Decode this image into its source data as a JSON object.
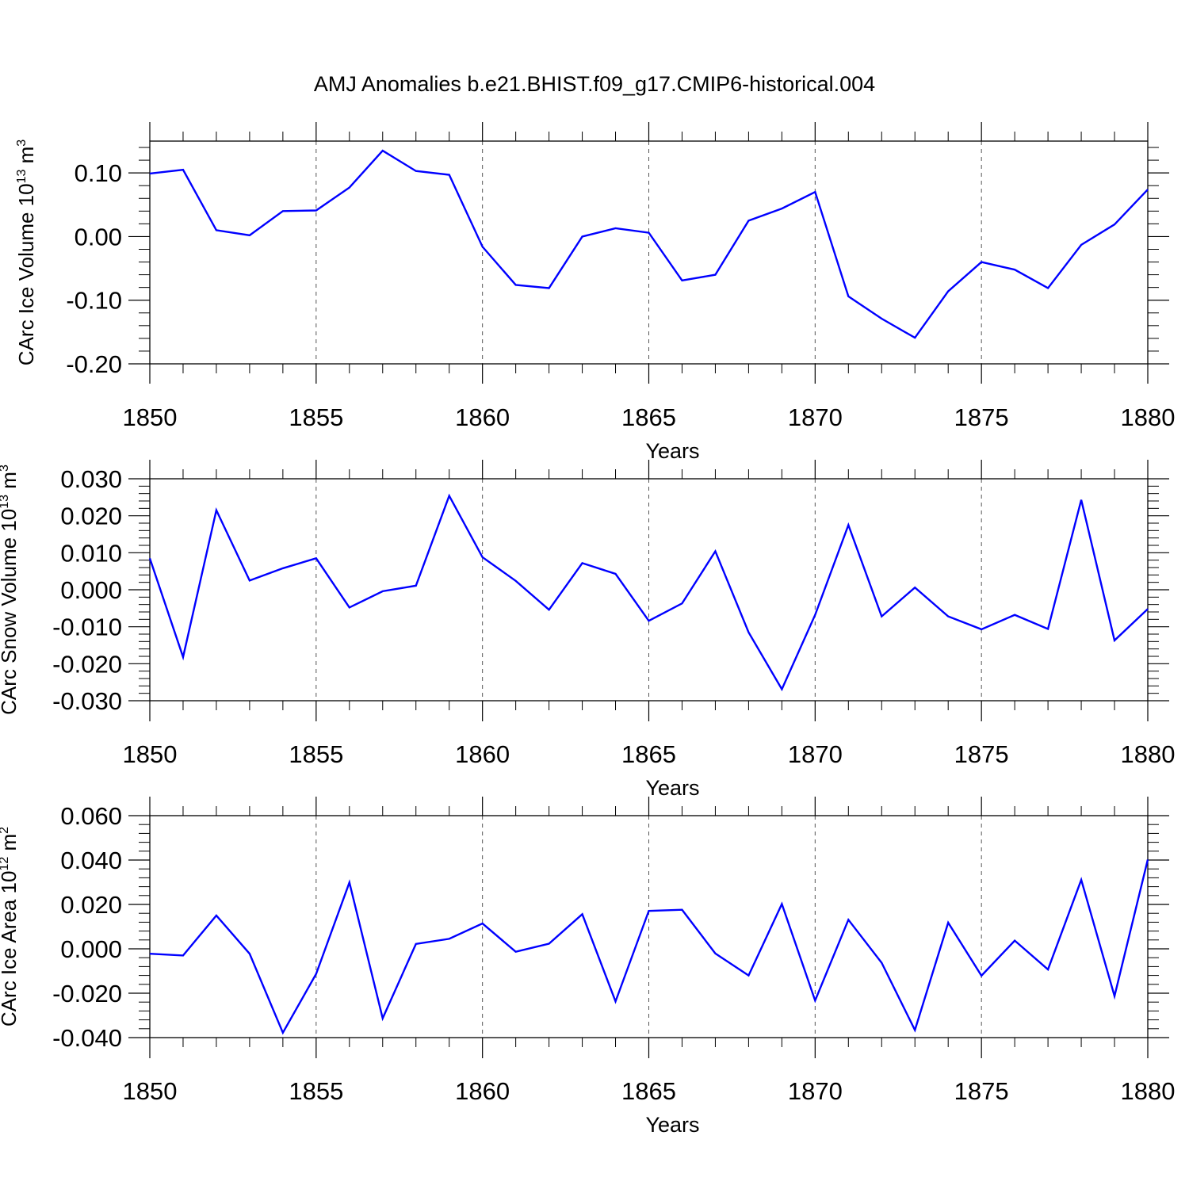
{
  "figure": {
    "title": "AMJ Anomalies b.e21.BHIST.f09_g17.CMIP6-historical.004",
    "line_color": "#0000ff"
  },
  "chart_data": [
    {
      "type": "line",
      "xlabel": "Years",
      "ylabel": {
        "prefix": "CArc Ice Volume 10",
        "exponent": "13",
        "unit": "m",
        "unit_exponent": "3"
      },
      "xlim": [
        1850,
        1880
      ],
      "ylim": [
        -0.2,
        0.15
      ],
      "xticks": [
        1850,
        1855,
        1860,
        1865,
        1870,
        1875,
        1880
      ],
      "xtick_labels": [
        "1850",
        "1855",
        "1860",
        "1865",
        "1870",
        "1875",
        "1880"
      ],
      "yticks": [
        -0.2,
        -0.1,
        0.0,
        0.1
      ],
      "ytick_labels": [
        "-0.20",
        "-0.10",
        "0.00",
        "0.10"
      ],
      "grid": "dashed vertical at major x ticks",
      "series": [
        {
          "x": [
            1850,
            1851,
            1852,
            1853,
            1854,
            1855,
            1856,
            1857,
            1858,
            1859,
            1860,
            1861,
            1862,
            1863,
            1864,
            1865,
            1866,
            1867,
            1868,
            1869,
            1870,
            1871,
            1872,
            1873,
            1874,
            1875,
            1876,
            1877,
            1878,
            1879,
            1880
          ],
          "values": [
            0.099,
            0.105,
            0.01,
            0.002,
            0.04,
            0.041,
            0.077,
            0.135,
            0.103,
            0.097,
            -0.016,
            -0.076,
            -0.081,
            0.0,
            0.013,
            0.006,
            -0.069,
            -0.06,
            0.025,
            0.044,
            0.07,
            -0.094,
            -0.129,
            -0.159,
            -0.086,
            -0.04,
            -0.052,
            -0.081,
            -0.013,
            0.019,
            0.074
          ]
        }
      ]
    },
    {
      "type": "line",
      "xlabel": "Years",
      "ylabel": {
        "prefix": "CArc Snow Volume 10",
        "exponent": "13",
        "unit": "m",
        "unit_exponent": "3"
      },
      "xlim": [
        1850,
        1880
      ],
      "ylim": [
        -0.03,
        0.03
      ],
      "xticks": [
        1850,
        1855,
        1860,
        1865,
        1870,
        1875,
        1880
      ],
      "xtick_labels": [
        "1850",
        "1855",
        "1860",
        "1865",
        "1870",
        "1875",
        "1880"
      ],
      "yticks": [
        -0.03,
        -0.02,
        -0.01,
        0.0,
        0.01,
        0.02,
        0.03
      ],
      "ytick_labels": [
        "-0.030",
        "-0.020",
        "-0.010",
        "0.000",
        "0.010",
        "0.020",
        "0.030"
      ],
      "grid": "dashed vertical at major x ticks",
      "series": [
        {
          "x": [
            1850,
            1851,
            1852,
            1853,
            1854,
            1855,
            1856,
            1857,
            1858,
            1859,
            1860,
            1861,
            1862,
            1863,
            1864,
            1865,
            1866,
            1867,
            1868,
            1869,
            1870,
            1871,
            1872,
            1873,
            1874,
            1875,
            1876,
            1877,
            1878,
            1879,
            1880
          ],
          "values": [
            0.0085,
            -0.0182,
            0.0215,
            0.0025,
            0.0058,
            0.0085,
            -0.0048,
            -0.0004,
            0.0011,
            0.0254,
            0.0088,
            0.0024,
            -0.0054,
            0.0072,
            0.0043,
            -0.0084,
            -0.0037,
            0.0104,
            -0.0115,
            -0.0269,
            -0.0068,
            0.0175,
            -0.0072,
            0.0006,
            -0.0072,
            -0.0107,
            -0.0068,
            -0.0106,
            0.0243,
            -0.0137,
            -0.0052
          ]
        }
      ]
    },
    {
      "type": "line",
      "xlabel": "Years",
      "ylabel": {
        "prefix": "CArc Ice Area 10",
        "exponent": "12",
        "unit": "m",
        "unit_exponent": "2"
      },
      "xlim": [
        1850,
        1880
      ],
      "ylim": [
        -0.04,
        0.06
      ],
      "xticks": [
        1850,
        1855,
        1860,
        1865,
        1870,
        1875,
        1880
      ],
      "xtick_labels": [
        "1850",
        "1855",
        "1860",
        "1865",
        "1870",
        "1875",
        "1880"
      ],
      "yticks": [
        -0.04,
        -0.02,
        0.0,
        0.02,
        0.04,
        0.06
      ],
      "ytick_labels": [
        "-0.040",
        "-0.020",
        "0.000",
        "0.020",
        "0.040",
        "0.060"
      ],
      "grid": "dashed vertical at major x ticks",
      "series": [
        {
          "x": [
            1850,
            1851,
            1852,
            1853,
            1854,
            1855,
            1856,
            1857,
            1858,
            1859,
            1860,
            1861,
            1862,
            1863,
            1864,
            1865,
            1866,
            1867,
            1868,
            1869,
            1870,
            1871,
            1872,
            1873,
            1874,
            1875,
            1876,
            1877,
            1878,
            1879,
            1880
          ],
          "values": [
            -0.0022,
            -0.003,
            0.015,
            -0.0022,
            -0.0378,
            -0.0113,
            0.0299,
            -0.0313,
            0.0022,
            0.0045,
            0.0114,
            -0.0013,
            0.0023,
            0.0156,
            -0.0237,
            0.0171,
            0.0176,
            -0.0021,
            -0.012,
            0.0202,
            -0.0233,
            0.0131,
            -0.0063,
            -0.0366,
            0.0118,
            -0.0121,
            0.0037,
            -0.0093,
            0.0311,
            -0.0213,
            0.0402
          ]
        }
      ]
    }
  ]
}
